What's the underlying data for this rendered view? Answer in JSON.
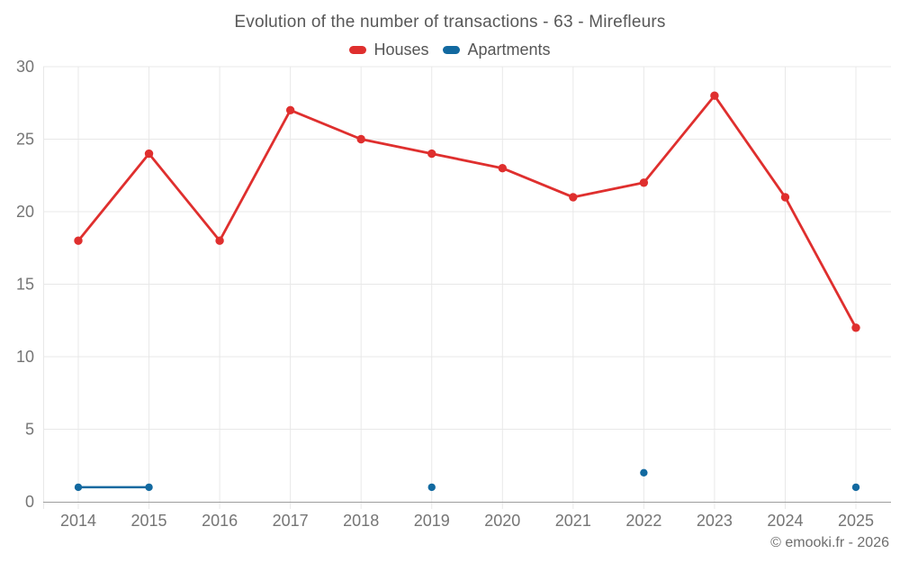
{
  "header": {
    "title": "Evolution of the number of transactions - 63 - Mirefleurs"
  },
  "legend": {
    "items": [
      {
        "label": "Houses",
        "color": "#df2f2e"
      },
      {
        "label": "Apartments",
        "color": "#1269a0"
      }
    ]
  },
  "footer": {
    "attribution": "© emooki.fr - 2026"
  },
  "colors": {
    "houses_series": "#df2f2e",
    "apartments_series": "#1269a0",
    "gridline": "#e8e8e8",
    "axis_line": "#9e9e9e",
    "tick_label": "#757575",
    "title_text": "#585858"
  },
  "chart_data": {
    "type": "line",
    "title": "Evolution of the number of transactions - 63 - Mirefleurs",
    "categories": [
      "2014",
      "2015",
      "2016",
      "2017",
      "2018",
      "2019",
      "2020",
      "2021",
      "2022",
      "2023",
      "2024",
      "2025"
    ],
    "series": [
      {
        "name": "Houses",
        "color": "#df2f2e",
        "marker_radius": 4.7,
        "line_width": 2.8,
        "values": [
          18,
          24,
          18,
          27,
          25,
          24,
          23,
          21,
          22,
          28,
          21,
          12
        ]
      },
      {
        "name": "Apartments",
        "color": "#1269a0",
        "marker_radius": 4.2,
        "line_width": 2.5,
        "values": [
          1,
          1,
          null,
          null,
          null,
          1,
          null,
          null,
          2,
          null,
          null,
          1
        ]
      }
    ],
    "xlabel": "",
    "ylabel": "",
    "ylim": [
      0,
      30
    ],
    "yticks": [
      0,
      5,
      10,
      15,
      20,
      25,
      30
    ],
    "grid": true,
    "legend_position": "top",
    "missing_values_note": "Apartments has no data for 2016, 2017, 2018, 2020, 2021, 2023, 2024; only consecutive years 2014-2015 are connected by a line"
  }
}
